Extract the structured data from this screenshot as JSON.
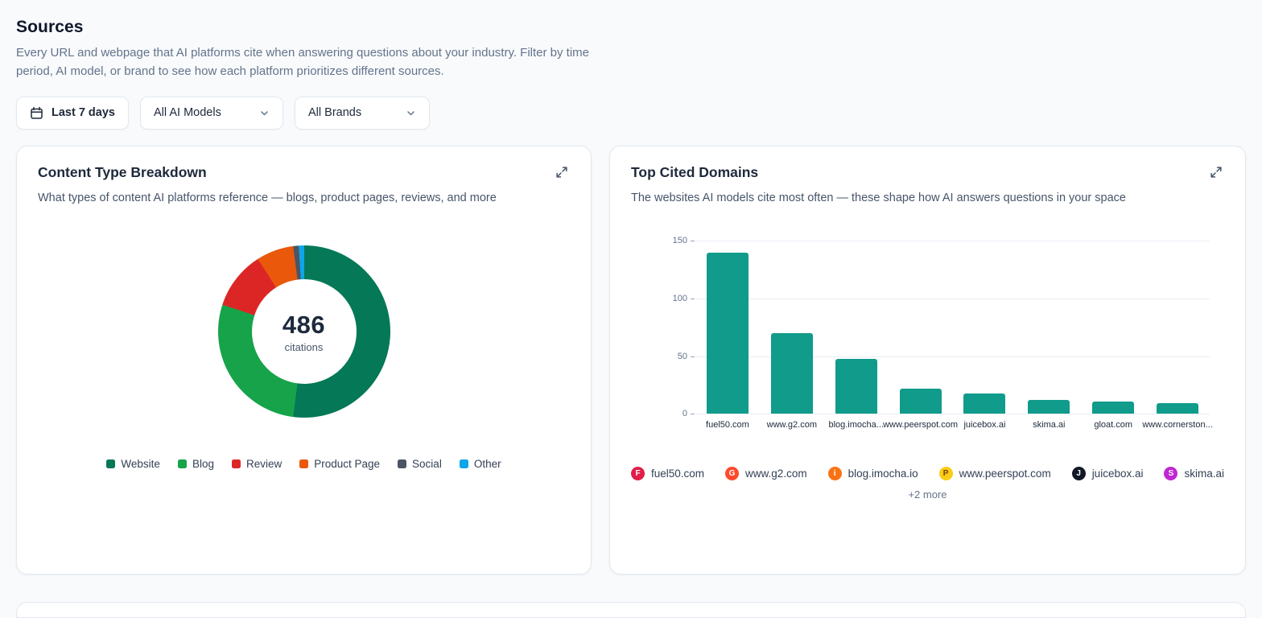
{
  "page": {
    "title": "Sources",
    "subtitle": "Every URL and webpage that AI platforms cite when answering questions about your industry. Filter by time period, AI model, or brand to see how each platform prioritizes different sources."
  },
  "filters": {
    "date_range": "Last 7 days",
    "model_select": "All AI Models",
    "brand_select": "All Brands"
  },
  "cards": {
    "content_type": {
      "title": "Content Type Breakdown",
      "subtitle": "What types of content AI platforms reference — blogs, product pages, reviews, and more",
      "center_value": "486",
      "center_label": "citations"
    },
    "top_domains": {
      "title": "Top Cited Domains",
      "subtitle": "The websites AI models cite most often — these shape how AI answers questions in your space",
      "more_label": "+2 more"
    }
  },
  "chart_data": [
    {
      "type": "pie",
      "title": "Content Type Breakdown",
      "total": 486,
      "total_label": "citations",
      "legend_position": "bottom",
      "segments": [
        {
          "label": "Website",
          "value": 253,
          "color": "#047857"
        },
        {
          "label": "Blog",
          "value": 136,
          "color": "#16a34a"
        },
        {
          "label": "Review",
          "value": 53,
          "color": "#dc2626"
        },
        {
          "label": "Product Page",
          "value": 34,
          "color": "#ea580c"
        },
        {
          "label": "Social",
          "value": 5,
          "color": "#4b5563"
        },
        {
          "label": "Other",
          "value": 5,
          "color": "#0ea5e9"
        }
      ]
    },
    {
      "type": "bar",
      "title": "Top Cited Domains",
      "categories": [
        "fuel50.com",
        "www.g2.com",
        "blog.imocha...",
        "www.peerspot.com",
        "juicebox.ai",
        "skima.ai",
        "gloat.com",
        "www.cornerston..."
      ],
      "values": [
        140,
        70,
        48,
        22,
        18,
        12,
        11,
        9
      ],
      "bar_color": "#119b8b",
      "ylim": [
        0,
        150
      ],
      "yticks": [
        0,
        50,
        100,
        150
      ],
      "grid": true
    }
  ],
  "domain_favicons": [
    {
      "label": "fuel50.com",
      "letter": "F",
      "color": "#e11d48",
      "fg": "#ffffff"
    },
    {
      "label": "www.g2.com",
      "letter": "G",
      "color": "#ff492c",
      "fg": "#ffffff"
    },
    {
      "label": "blog.imocha.io",
      "letter": "i",
      "color": "#f97316",
      "fg": "#ffffff"
    },
    {
      "label": "www.peerspot.com",
      "letter": "P",
      "color": "#facc15",
      "fg": "#713f12"
    },
    {
      "label": "juicebox.ai",
      "letter": "J",
      "color": "#111827",
      "fg": "#ffffff"
    },
    {
      "label": "skima.ai",
      "letter": "S",
      "color": "#c026d3",
      "fg": "#ffffff"
    }
  ]
}
